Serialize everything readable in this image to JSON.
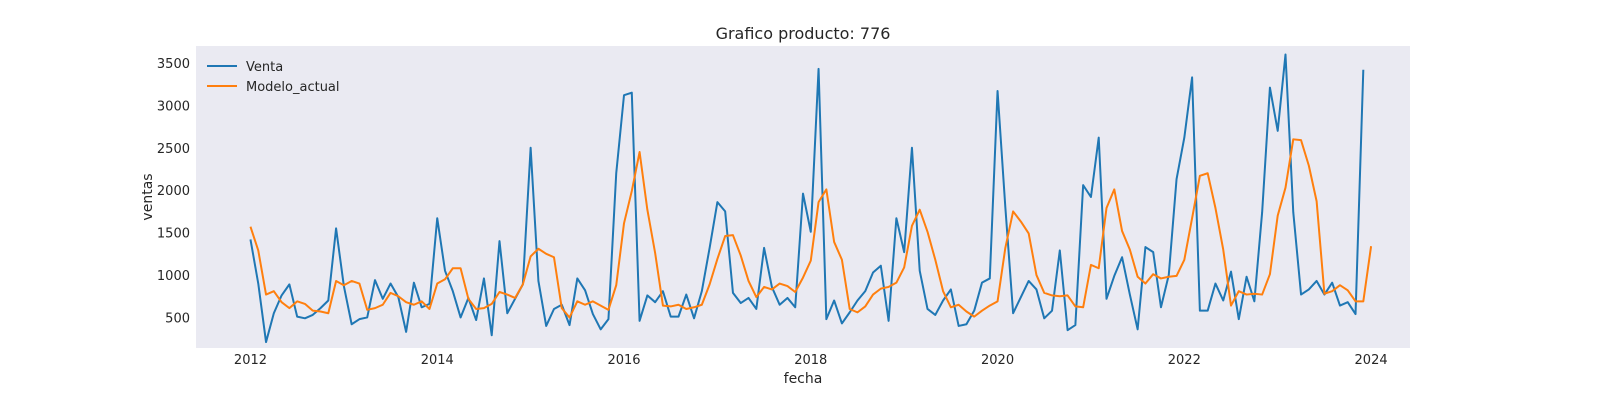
{
  "chart_data": {
    "type": "line",
    "title": "Grafico producto: 776",
    "xlabel": "fecha",
    "ylabel": "ventas",
    "x_start": "2012-01",
    "x_ticks": [
      "2012",
      "2014",
      "2016",
      "2018",
      "2020",
      "2022",
      "2024"
    ],
    "y_ticks": [
      500,
      1000,
      1500,
      2000,
      2500,
      3000,
      3500
    ],
    "ylim": [
      140,
      3700
    ],
    "xlim": [
      "2011-06",
      "2024-06"
    ],
    "grid": false,
    "legend": "top-left",
    "series": [
      {
        "name": "Venta",
        "color": "#1f77b4",
        "values": [
          1420,
          900,
          210,
          550,
          760,
          890,
          510,
          490,
          530,
          610,
          700,
          1550,
          870,
          420,
          480,
          500,
          940,
          720,
          900,
          740,
          330,
          910,
          620,
          660,
          1670,
          1050,
          810,
          500,
          730,
          470,
          960,
          290,
          1400,
          550,
          720,
          890,
          2500,
          930,
          400,
          600,
          650,
          410,
          960,
          820,
          540,
          360,
          480,
          2200,
          3120,
          3150,
          460,
          760,
          680,
          810,
          510,
          510,
          770,
          490,
          810,
          1320,
          1860,
          1750,
          790,
          670,
          730,
          600,
          1320,
          860,
          650,
          730,
          620,
          1960,
          1510,
          3430,
          480,
          700,
          430,
          560,
          700,
          810,
          1030,
          1110,
          460,
          1670,
          1270,
          2500,
          1050,
          600,
          530,
          700,
          830,
          400,
          420,
          580,
          910,
          960,
          3170,
          1800,
          550,
          740,
          930,
          830,
          490,
          580,
          1290,
          350,
          410,
          2060,
          1920,
          2620,
          720,
          990,
          1210,
          770,
          360,
          1330,
          1270,
          620,
          1000,
          2130,
          2620,
          3330,
          580,
          580,
          900,
          700,
          1040,
          480,
          980,
          690,
          1740,
          3210,
          2700,
          3600,
          1740,
          770,
          830,
          930,
          770,
          910,
          640,
          680,
          540,
          3420
        ]
      },
      {
        "name": "Modelo_actual",
        "color": "#ff7f0e",
        "values": [
          1570,
          1290,
          770,
          810,
          680,
          610,
          690,
          660,
          580,
          570,
          550,
          930,
          880,
          930,
          900,
          590,
          610,
          650,
          790,
          750,
          680,
          650,
          690,
          600,
          900,
          950,
          1080,
          1080,
          720,
          600,
          610,
          660,
          800,
          770,
          730,
          890,
          1220,
          1310,
          1250,
          1210,
          610,
          500,
          690,
          650,
          690,
          640,
          590,
          880,
          1610,
          1990,
          2450,
          1770,
          1260,
          640,
          630,
          650,
          600,
          620,
          650,
          890,
          1190,
          1460,
          1470,
          1230,
          930,
          740,
          860,
          830,
          900,
          870,
          800,
          970,
          1170,
          1860,
          2010,
          1390,
          1180,
          600,
          560,
          630,
          770,
          840,
          860,
          910,
          1090,
          1580,
          1770,
          1510,
          1180,
          810,
          620,
          650,
          570,
          510,
          580,
          640,
          690,
          1320,
          1750,
          1630,
          1490,
          1000,
          790,
          760,
          750,
          760,
          630,
          620,
          1120,
          1080,
          1790,
          2010,
          1520,
          1300,
          980,
          900,
          1010,
          960,
          980,
          990,
          1180,
          1670,
          2170,
          2200,
          1790,
          1300,
          640,
          810,
          770,
          780,
          770,
          1010,
          1700,
          2030,
          2600,
          2590,
          2290,
          1870,
          780,
          810,
          880,
          820,
          690,
          690,
          1340
        ]
      }
    ]
  }
}
